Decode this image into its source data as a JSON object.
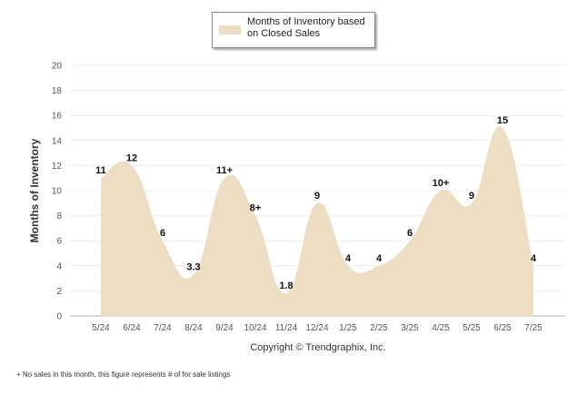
{
  "chart_data": {
    "type": "area",
    "legend": {
      "label": "Months of Inventory based on Closed Sales",
      "placement": "top-center"
    },
    "ylabel": "Months of Inventory",
    "xlabel": "",
    "ylim": [
      0,
      20
    ],
    "yticks": [
      0,
      2,
      4,
      6,
      8,
      10,
      12,
      14,
      16,
      18,
      20
    ],
    "grid": true,
    "categories": [
      "5/24",
      "6/24",
      "7/24",
      "8/24",
      "9/24",
      "10/24",
      "11/24",
      "12/24",
      "1/25",
      "2/25",
      "3/25",
      "4/25",
      "5/25",
      "6/25",
      "7/25"
    ],
    "series": [
      {
        "name": "Months of Inventory based on Closed Sales",
        "values": [
          11,
          12,
          6,
          3.3,
          11,
          8,
          1.8,
          9,
          4,
          4,
          6,
          10,
          9,
          15,
          4
        ],
        "labels": [
          "11",
          "12",
          "6",
          "3.3",
          "11+",
          "8+",
          "1.8",
          "9",
          "4",
          "4",
          "6",
          "10+",
          "9",
          "15",
          "4"
        ],
        "color": "#eddec3"
      }
    ]
  },
  "copyright": "Copyright © Trendgraphix, Inc.",
  "footnote": "+ No sales in this month, this figure represents # of for sale listings"
}
